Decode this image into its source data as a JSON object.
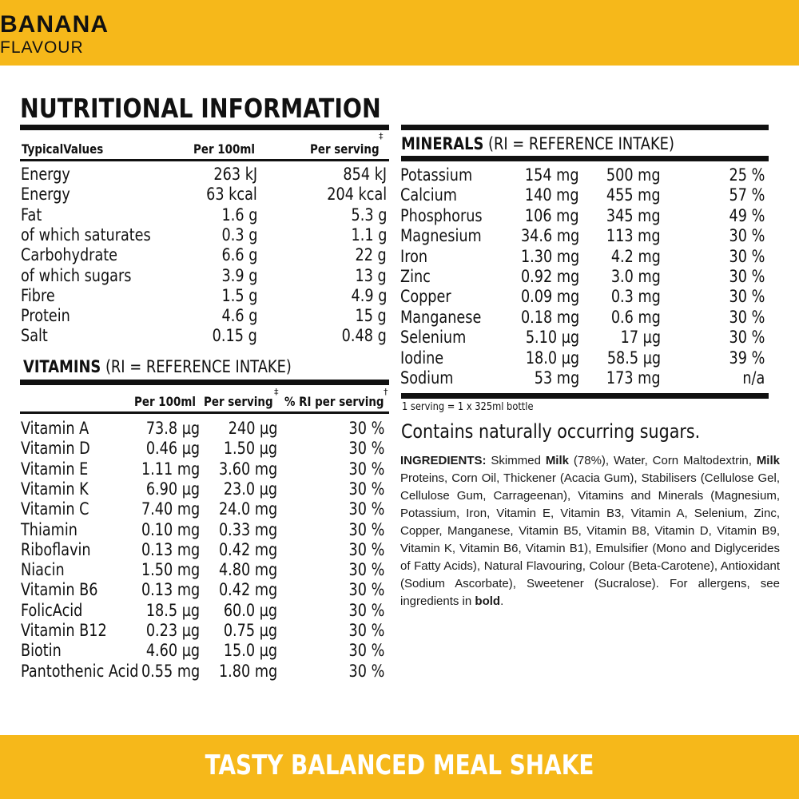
{
  "header": {
    "flavour_name": "BANANA",
    "flavour_sub": "FLAVOUR"
  },
  "title": "NUTRITIONAL INFORMATION",
  "nutrition": {
    "headers": {
      "name": "TypicalValues",
      "per100": "Per 100ml",
      "perserving": "Per serving",
      "dagger": "‡"
    },
    "rows": [
      {
        "name": "Energy",
        "per100": "263 kJ",
        "perserving": "854 kJ"
      },
      {
        "name": "Energy",
        "per100": "63 kcal",
        "perserving": "204 kcal"
      },
      {
        "name": "Fat",
        "per100": "1.6 g",
        "perserving": "5.3 g"
      },
      {
        "name": "of which saturates",
        "per100": "0.3 g",
        "perserving": "1.1 g"
      },
      {
        "name": "Carbohydrate",
        "per100": "6.6 g",
        "perserving": "22 g"
      },
      {
        "name": "of which sugars",
        "per100": "3.9 g",
        "perserving": "13 g"
      },
      {
        "name": "Fibre",
        "per100": "1.5 g",
        "perserving": "4.9 g"
      },
      {
        "name": "Protein",
        "per100": "4.6 g",
        "perserving": "15 g"
      },
      {
        "name": "Salt",
        "per100": "0.15 g",
        "perserving": "0.48 g"
      }
    ]
  },
  "vitamins": {
    "heading_bold": "VITAMINS",
    "heading_rest": " (RI = REFERENCE INTAKE)",
    "headers": {
      "per100": "Per 100ml",
      "perserving": "Per serving",
      "dagger1": "‡",
      "ri": "% RI per serving",
      "dagger2": "†"
    },
    "rows": [
      {
        "name": "Vitamin A",
        "per100": "73.8 µg",
        "perserving": "240 µg",
        "ri": "30 %"
      },
      {
        "name": "Vitamin D",
        "per100": "0.46 µg",
        "perserving": "1.50 µg",
        "ri": "30 %"
      },
      {
        "name": "Vitamin E",
        "per100": "1.11 mg",
        "perserving": "3.60 mg",
        "ri": "30 %"
      },
      {
        "name": "Vitamin K",
        "per100": "6.90 µg",
        "perserving": "23.0 µg",
        "ri": "30 %"
      },
      {
        "name": "Vitamin C",
        "per100": "7.40 mg",
        "perserving": "24.0 mg",
        "ri": "30 %"
      },
      {
        "name": "Thiamin",
        "per100": "0.10 mg",
        "perserving": "0.33 mg",
        "ri": "30 %"
      },
      {
        "name": "Riboflavin",
        "per100": "0.13 mg",
        "perserving": "0.42 mg",
        "ri": "30 %"
      },
      {
        "name": "Niacin",
        "per100": "1.50 mg",
        "perserving": "4.80 mg",
        "ri": "30 %"
      },
      {
        "name": "Vitamin B6",
        "per100": "0.13 mg",
        "perserving": "0.42 mg",
        "ri": "30 %"
      },
      {
        "name": "FolicAcid",
        "per100": "18.5 µg",
        "perserving": "60.0 µg",
        "ri": "30 %"
      },
      {
        "name": "Vitamin B12",
        "per100": "0.23 µg",
        "perserving": "0.75 µg",
        "ri": "30 %"
      },
      {
        "name": "Biotin",
        "per100": "4.60 µg",
        "perserving": "15.0 µg",
        "ri": "30 %"
      },
      {
        "name": "Pantothenic Acid",
        "per100": "0.55 mg",
        "perserving": "1.80 mg",
        "ri": "30 %"
      }
    ]
  },
  "minerals": {
    "heading_bold": "MINERALS",
    "heading_rest": " (RI = REFERENCE INTAKE)",
    "rows": [
      {
        "name": "Potassium",
        "per100": "154 mg",
        "perserving": "500 mg",
        "ri": "25 %"
      },
      {
        "name": "Calcium",
        "per100": "140 mg",
        "perserving": "455 mg",
        "ri": "57 %"
      },
      {
        "name": "Phosphorus",
        "per100": "106 mg",
        "perserving": "345 mg",
        "ri": "49 %"
      },
      {
        "name": "Magnesium",
        "per100": "34.6 mg",
        "perserving": "113 mg",
        "ri": "30 %"
      },
      {
        "name": "Iron",
        "per100": "1.30 mg",
        "perserving": "4.2 mg",
        "ri": "30 %"
      },
      {
        "name": "Zinc",
        "per100": "0.92 mg",
        "perserving": "3.0 mg",
        "ri": "30 %"
      },
      {
        "name": "Copper",
        "per100": "0.09 mg",
        "perserving": "0.3 mg",
        "ri": "30 %"
      },
      {
        "name": "Manganese",
        "per100": "0.18 mg",
        "perserving": "0.6 mg",
        "ri": "30 %"
      },
      {
        "name": "Selenium",
        "per100": "5.10 µg",
        "perserving": "17 µg",
        "ri": "30 %"
      },
      {
        "name": "Iodine",
        "per100": "18.0 µg",
        "perserving": "58.5 µg",
        "ri": "39 %"
      },
      {
        "name": "Sodium",
        "per100": "53 mg",
        "perserving": "173 mg",
        "ri": "n/a"
      }
    ]
  },
  "serving_note": "1 serving = 1 x 325ml bottle",
  "contains_note": "Contains naturally occurring sugars.",
  "ingredients": {
    "label": "INGREDIENTS:",
    "p1": " Skimmed ",
    "b1": "Milk",
    "p2": " (78%), Water, Corn Maltodextrin, ",
    "b2": "Milk",
    "p3": " Proteins, Corn Oil, Thickener (Acacia Gum), Stabilisers (Cellulose Gel, Cellulose Gum, Carrageenan), Vitamins and Minerals (Magnesium, Potassium, Iron, Vitamin E, Vitamin B3, Vitamin A, Selenium, Zinc, Copper, Manganese, Vitamin B5, Vitamin B8, Vitamin D, Vitamin B9, Vitamin K, Vitamin B6, Vitamin B1), Emulsifier (Mono and Diglycerides of Fatty Acids), Natural Flavouring, Colour (Beta-Carotene), Antioxidant (Sodium Ascorbate), Sweetener (Sucralose). For allergens, see ingredients in ",
    "b3": "bold",
    "p4": "."
  },
  "footer": {
    "tagline": "TASTY BALANCED MEAL SHAKE"
  },
  "colors": {
    "brand_yellow": "#F6B81A",
    "text": "#111111"
  }
}
